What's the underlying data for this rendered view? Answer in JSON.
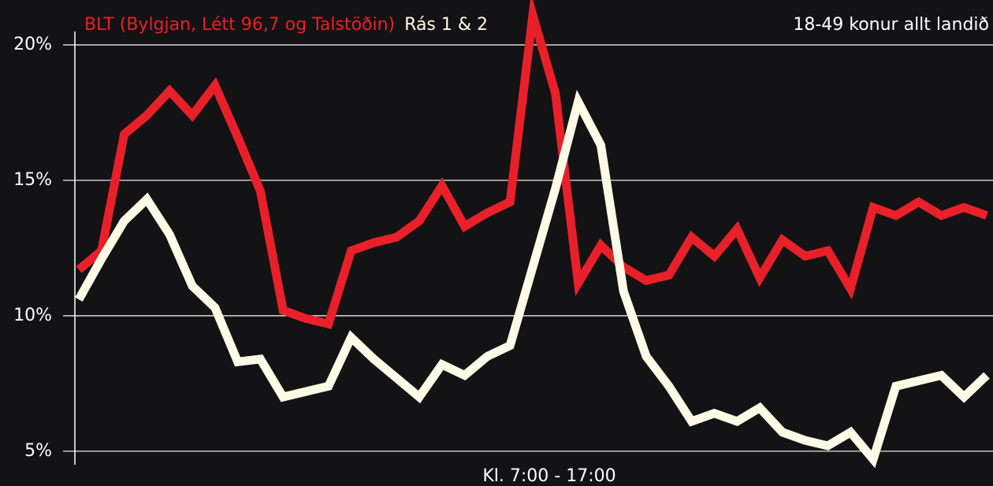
{
  "chart_data": {
    "type": "line",
    "annotation": "18-49 konur allt landið",
    "x_label": "Kl. 7:00 - 17:00",
    "categories": [
      null,
      null,
      null,
      null,
      null,
      null,
      null,
      null,
      null,
      null,
      null,
      null,
      null,
      null,
      null,
      null,
      null,
      null,
      null,
      null,
      null,
      null,
      null,
      null,
      null,
      null,
      null,
      null,
      null,
      null,
      null,
      null,
      null,
      null,
      null,
      null,
      null,
      null,
      null,
      null,
      null
    ],
    "series": [
      {
        "name": "BLT (Bylgjan, Létt 96,7 og Talstöðin)",
        "color": "#e8202a",
        "values": [
          11.7,
          12.4,
          16.7,
          17.4,
          18.3,
          17.4,
          18.5,
          16.6,
          14.6,
          10.2,
          9.9,
          9.7,
          12.4,
          12.7,
          12.9,
          13.5,
          14.8,
          13.3,
          13.8,
          14.2,
          21.1,
          18.2,
          11.2,
          12.6,
          11.8,
          11.3,
          11.5,
          12.9,
          12.2,
          13.2,
          11.4,
          12.8,
          12.2,
          12.4,
          11.0,
          14.0,
          13.7,
          14.2,
          13.7,
          14.0,
          13.7
        ]
      },
      {
        "name": "Rás 1 & 2",
        "color": "#fdfbe6",
        "values": [
          10.6,
          12.1,
          13.5,
          14.3,
          13.0,
          11.1,
          10.3,
          8.3,
          8.4,
          7.0,
          7.2,
          7.4,
          9.2,
          8.4,
          7.7,
          7.0,
          8.2,
          7.8,
          8.5,
          8.9,
          11.8,
          14.7,
          17.9,
          16.3,
          10.9,
          8.5,
          7.4,
          6.1,
          6.4,
          6.1,
          6.6,
          5.7,
          5.4,
          5.2,
          5.7,
          4.7,
          7.4,
          7.6,
          7.8,
          7.0,
          7.8
        ]
      }
    ],
    "ylim": [
      4.5,
      21.5
    ],
    "yticks": [
      {
        "value": 5,
        "label": "5%"
      },
      {
        "value": 10,
        "label": "10%"
      },
      {
        "value": 15,
        "label": "15%"
      },
      {
        "value": 20,
        "label": "20%"
      }
    ],
    "grid": true
  }
}
